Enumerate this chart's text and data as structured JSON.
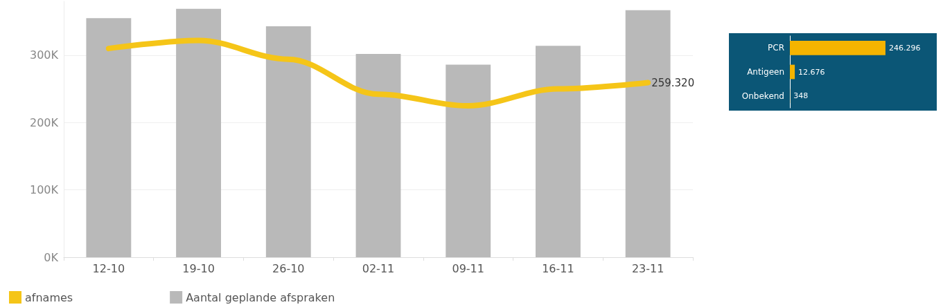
{
  "chart_data": [
    {
      "type": "bar",
      "categories": [
        "12-10",
        "19-10",
        "26-10",
        "02-11",
        "09-11",
        "16-11",
        "23-11"
      ],
      "series": [
        {
          "name": "afnames",
          "type": "line",
          "color": "#f5c518",
          "values": [
            310000,
            322000,
            294000,
            242000,
            225000,
            250000,
            259320
          ],
          "value_labels": [
            null,
            null,
            null,
            null,
            null,
            null,
            "259.320"
          ]
        },
        {
          "name": "Aantal geplande afspraken",
          "type": "bar",
          "color": "#b9b9b9",
          "values": [
            355000,
            369000,
            343000,
            302000,
            286000,
            314000,
            367000
          ]
        }
      ],
      "ylim": [
        0,
        380000
      ],
      "yticks": [
        {
          "value": 0,
          "label": "0K"
        },
        {
          "value": 100000,
          "label": "100K"
        },
        {
          "value": 200000,
          "label": "200K"
        },
        {
          "value": 300000,
          "label": "300K"
        }
      ],
      "grid": "y",
      "legend": "bottom left",
      "marker": "none"
    },
    {
      "type": "bar",
      "orientation": "horizontal",
      "categories": [
        "PCR",
        "Antigeen",
        "Onbekend"
      ],
      "values": [
        246296,
        12676,
        348
      ],
      "color": "#f5b400",
      "value_labels": [
        "246.296",
        "12.676",
        "348"
      ]
    }
  ]
}
